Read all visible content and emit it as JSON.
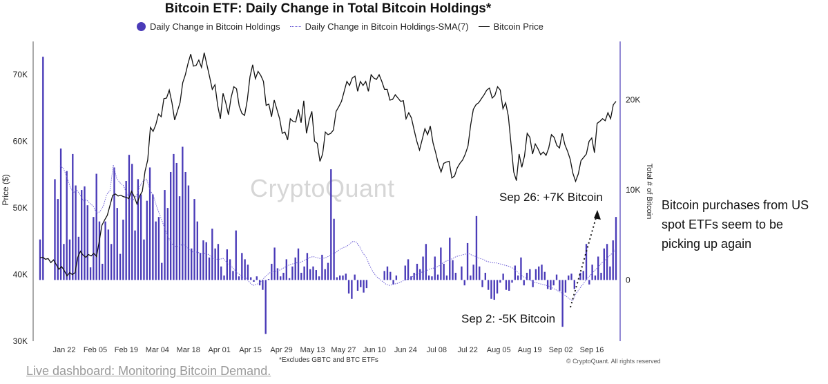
{
  "chart_data": {
    "type": "bar",
    "title": "Bitcoin ETF: Daily Change in Total Bitcoin Holdings*",
    "legend": {
      "placement": "top-center",
      "entries": [
        "Daily Change in Bitcoin Holdings",
        "Daily Change in Bitcoin Holdings-SMA(7)",
        "Bitcoin Price"
      ]
    },
    "ylabel_left": "Price ($)",
    "ylabel_right": "Total # of Bitcoin",
    "yticks_left": [
      "70K",
      "60K",
      "50K",
      "40K",
      "30K"
    ],
    "yticks_right": [
      "20K",
      "10K",
      "0"
    ],
    "xticks": [
      "Jan 22",
      "Feb 05",
      "Feb 19",
      "Mar 04",
      "Mar 18",
      "Apr 01",
      "Apr 15",
      "Apr 29",
      "May 13",
      "May 27",
      "Jun 10",
      "Jun 24",
      "Jul 08",
      "Jul 22",
      "Aug 05",
      "Aug 19",
      "Sep 02",
      "Sep 16"
    ],
    "ylim_left": [
      30000,
      75000
    ],
    "ylim_right": [
      -6800,
      26500
    ],
    "grid": false,
    "colors": {
      "bars": "#4a3bb8",
      "sma": "#6d5fd6",
      "price": "#111111"
    },
    "series": [
      {
        "name": "Daily Change in Bitcoin Holdings",
        "type": "bar",
        "axis": "right",
        "values": [
          4500,
          24800,
          0,
          0,
          0,
          11200,
          9000,
          14600,
          4000,
          12100,
          4500,
          14000,
          10500,
          4800,
          10000,
          10400,
          8300,
          1400,
          7000,
          11800,
          6500,
          1800,
          6500,
          5600,
          4000,
          12500,
          8000,
          2900,
          6700,
          11000,
          13900,
          12900,
          5500,
          11200,
          9500,
          4500,
          8800,
          12500,
          9500,
          6500,
          7000,
          1900,
          10000,
          8000,
          12000,
          14000,
          13000,
          9300,
          14800,
          12000,
          10500,
          3500,
          9000,
          6500,
          3000,
          4400,
          4200,
          2500,
          5700,
          3500,
          4000,
          1500,
          500,
          3400,
          2300,
          1000,
          5500,
          400,
          3000,
          2300,
          1700,
          300,
          -200,
          400,
          -600,
          -1100,
          -6000,
          100,
          1800,
          3600,
          1300,
          400,
          800,
          2300,
          200,
          1500,
          2500,
          3500,
          800,
          1500,
          3000,
          1200,
          1500,
          1100,
          400,
          2800,
          1200,
          1900,
          12300,
          6800,
          300,
          500,
          500,
          700,
          -1500,
          -2100,
          600,
          -1200,
          -800,
          -1400,
          -900,
          0,
          0,
          0,
          0,
          0,
          1000,
          1500,
          900,
          -500,
          500,
          0,
          0,
          1600,
          2300,
          400,
          800,
          1800,
          1200,
          2600,
          4000,
          500,
          400,
          2600,
          600,
          3600,
          1800,
          500,
          4700,
          2200,
          800,
          0,
          1500,
          -600,
          4100,
          500,
          1700,
          7100,
          1500,
          -800,
          800,
          -1100,
          -2100,
          -2200,
          -1500,
          -300,
          700,
          -1100,
          -1200,
          -300,
          1600,
          500,
          2500,
          -600,
          800,
          1200,
          -800,
          1200,
          1500,
          1700,
          900,
          -1000,
          -1100,
          -600,
          600,
          -1200,
          -5200,
          -1400,
          500,
          700,
          -1000,
          0,
          800,
          1000,
          4000,
          -500,
          1700,
          500,
          2600,
          800,
          3500,
          4000,
          1500,
          4400,
          7000
        ]
      },
      {
        "name": "Daily Change in Bitcoin Holdings-SMA(7)",
        "type": "line",
        "axis": "right",
        "values": [
          null,
          null,
          null,
          null,
          null,
          null,
          12700,
          12400,
          11500,
          10400,
          9700,
          10000,
          9500,
          8800,
          8900,
          8500,
          8200,
          7400,
          7600,
          8200,
          9500,
          9900,
          12800,
          11300,
          10800,
          10500,
          9700,
          9000,
          8900,
          9400,
          10400,
          11000,
          11200,
          10000,
          9400,
          8200,
          7200,
          6200,
          5200,
          4400,
          3800,
          3700,
          3800,
          4000,
          3700,
          3300,
          3100,
          3100,
          3000,
          2900,
          3000,
          2700,
          2400,
          2300,
          2300,
          2400,
          2000,
          1700,
          1300,
          900,
          600,
          300,
          200,
          -300,
          -600,
          -500,
          -300,
          100,
          500,
          800,
          900,
          1000,
          1100,
          1300,
          1500,
          1700,
          1800,
          1900,
          1900,
          2100,
          2300,
          2500,
          2600,
          2500,
          2400,
          2400,
          2500,
          2700,
          2900,
          3100,
          3400,
          3600,
          3700,
          4000,
          4300,
          4200,
          3700,
          3000,
          2500,
          1600,
          900,
          400,
          100,
          -200,
          -500,
          -600,
          -500,
          -400,
          -300,
          -100,
          0,
          200,
          400,
          600,
          800,
          900,
          1000,
          1200,
          1300,
          1400,
          1600,
          1900,
          2100,
          2200,
          2400,
          2600,
          2700,
          2800,
          2900,
          2900,
          2700,
          2600,
          2400,
          2300,
          2100,
          2000,
          1900,
          1900,
          1800,
          1700,
          1600,
          1500,
          1300,
          1000,
          700,
          400,
          200,
          0,
          -200,
          -300,
          -400,
          -500,
          -600,
          -700,
          -900,
          -1100,
          -1300,
          -1500,
          -1800,
          -2100,
          -2300,
          -1500,
          -1000,
          -500,
          0,
          400,
          800,
          1200,
          1600,
          2000,
          2300,
          2700,
          3000,
          3500
        ]
      },
      {
        "name": "Bitcoin Price",
        "type": "line",
        "axis": "left",
        "values": [
          42500,
          42600,
          42300,
          42400,
          41800,
          42200,
          41500,
          40800,
          41200,
          40600,
          39800,
          40300,
          40000,
          40300,
          42600,
          43500,
          42900,
          42600,
          43000,
          42800,
          43200,
          42700,
          45000,
          47400,
          48200,
          48900,
          50400,
          51900,
          52100,
          51800,
          51900,
          51700,
          51600,
          51400,
          52500,
          51700,
          50600,
          51800,
          52500,
          55500,
          57200,
          62100,
          61500,
          62500,
          64100,
          63700,
          66400,
          66500,
          67700,
          65800,
          63200,
          64500,
          65800,
          68800,
          70000,
          71700,
          73100,
          71300,
          71400,
          72200,
          71100,
          73300,
          71500,
          69700,
          67800,
          68500,
          65400,
          63400,
          67200,
          65800,
          64000,
          66600,
          68200,
          67900,
          65300,
          64200,
          63900,
          66200,
          69700,
          71500,
          69400,
          70500,
          69900,
          69000,
          65400,
          65600,
          63700,
          66200,
          64800,
          63400,
          61200,
          61400,
          60200,
          63400,
          63000,
          62900,
          64800,
          62800,
          66100,
          61200,
          63200,
          64500,
          60000,
          59700,
          57000,
          58100,
          61400,
          61000,
          61200,
          61700,
          64500,
          65200,
          66000,
          67500,
          69000,
          68400,
          69500,
          69800,
          67500,
          69000,
          68400,
          69000,
          67500,
          70000,
          69500,
          69300,
          70000,
          69000,
          67800,
          67800,
          66200,
          66300,
          67000,
          66500,
          66000,
          66100,
          63400,
          64300,
          63500,
          61700,
          60000,
          58700,
          60300,
          61900,
          61000,
          62300,
          59800,
          58300,
          56600,
          55400,
          56700,
          56900,
          57000,
          54500,
          54800,
          56000,
          56700,
          57200,
          58100,
          59300,
          62500,
          64800,
          65500,
          65800,
          66400,
          67000,
          67700,
          68000,
          66500,
          66900,
          68200,
          67700,
          64900,
          65800,
          63800,
          59600,
          55400,
          54100,
          58100,
          56100,
          57800,
          61200,
          60600,
          58100,
          59600,
          58900,
          58000,
          58400,
          57900,
          59000,
          61000,
          60600,
          59400,
          59000,
          61200,
          59500,
          58500,
          57300,
          55200,
          54000,
          55100,
          57100,
          57600,
          58100,
          60000,
          60500,
          58300,
          62700,
          63000,
          63400,
          63100,
          64300,
          63400,
          65500,
          66000
        ]
      }
    ],
    "annotations": [
      {
        "text": "Sep 26: +7K Bitcoin",
        "x": "Sep 26",
        "y": 7000
      },
      {
        "text": "Sep 2: -5K Bitcoin",
        "x": "Sep 02",
        "y": -5200
      }
    ]
  },
  "watermark": "CryptoQuant",
  "footnote": "*Excludes GBTC and BTC ETFs",
  "copyright": "© CryptoQuant. All rights reserved",
  "side_note": "Bitcoin purchases from US spot ETFs seem to be picking up again",
  "link_text": "Live dashboard: Monitoring Bitcoin Demand."
}
